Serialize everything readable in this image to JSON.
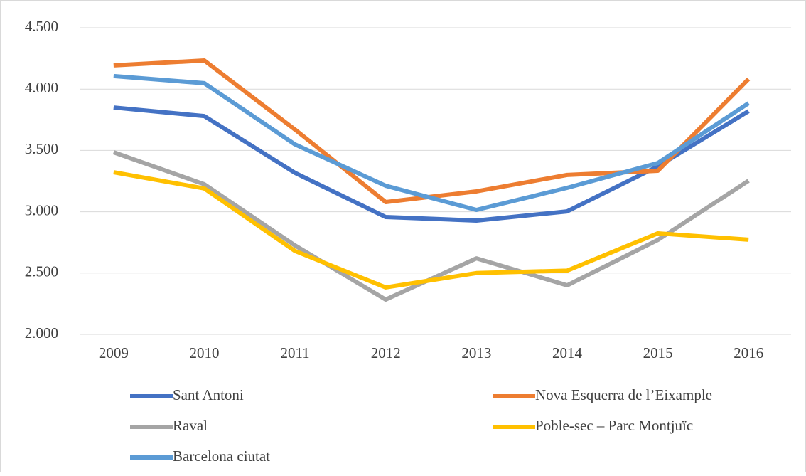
{
  "chart_data": {
    "type": "line",
    "categories": [
      "2009",
      "2010",
      "2011",
      "2012",
      "2013",
      "2014",
      "2015",
      "2016"
    ],
    "series": [
      {
        "name": "Sant Antoni",
        "color": "#4472c4",
        "values": [
          3850,
          3780,
          3317,
          2957,
          2928,
          3003,
          3370,
          3820
        ]
      },
      {
        "name": "Nova Esquerra de l’Eixample",
        "color": "#ed7d31",
        "values": [
          4193,
          4233,
          3670,
          3079,
          3166,
          3300,
          3334,
          4082
        ]
      },
      {
        "name": "Raval",
        "color": "#a5a5a5",
        "values": [
          3485,
          3224,
          2725,
          2284,
          2620,
          2400,
          2770,
          3253
        ]
      },
      {
        "name": "Poble-sec – Parc Montjuïc",
        "color": "#ffc000",
        "values": [
          3322,
          3190,
          2680,
          2383,
          2500,
          2520,
          2824,
          2772
        ]
      },
      {
        "name": "Barcelona ciutat",
        "color": "#5b9bd5",
        "values": [
          4106,
          4048,
          3549,
          3212,
          3015,
          3195,
          3397,
          3885
        ]
      }
    ],
    "ylim": [
      2000,
      4500
    ],
    "yticks": [
      {
        "value": 2000,
        "label": "2.000"
      },
      {
        "value": 2500,
        "label": "2.500"
      },
      {
        "value": 3000,
        "label": "3.000"
      },
      {
        "value": 3500,
        "label": "3.500"
      },
      {
        "value": 4000,
        "label": "4.000"
      },
      {
        "value": 4500,
        "label": "4.500"
      }
    ],
    "grid": true,
    "legend": "bottom"
  }
}
